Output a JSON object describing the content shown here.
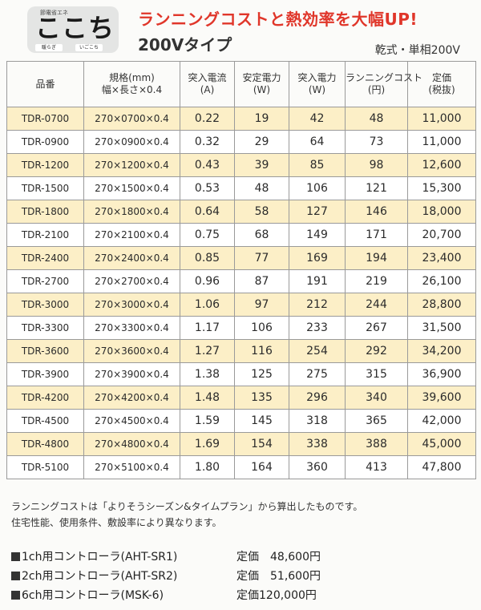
{
  "logo": {
    "top": "節電省エネ",
    "main": "ここち",
    "sub": "暖",
    "left_label": "暖らぎ",
    "right_label": "いごこち"
  },
  "headline": "ランニングコストと熱効率を大幅UP!",
  "subhead": "200Vタイプ",
  "spec": "乾式・単相200V",
  "table": {
    "headers": [
      [
        "品番"
      ],
      [
        "規格(mm)",
        "幅×長さ×0.4"
      ],
      [
        "突入電流",
        "(A)"
      ],
      [
        "安定電力",
        "(W)"
      ],
      [
        "突入電力",
        "(W)"
      ],
      [
        "ランニングコスト",
        "(円)"
      ],
      [
        "定価",
        "(税抜)"
      ]
    ],
    "rows": [
      [
        "TDR-0700",
        "270×0700×0.4",
        "0.22",
        "19",
        "42",
        "48",
        "11,000"
      ],
      [
        "TDR-0900",
        "270×0900×0.4",
        "0.32",
        "29",
        "64",
        "73",
        "11,000"
      ],
      [
        "TDR-1200",
        "270×1200×0.4",
        "0.43",
        "39",
        "85",
        "98",
        "12,600"
      ],
      [
        "TDR-1500",
        "270×1500×0.4",
        "0.53",
        "48",
        "106",
        "121",
        "15,300"
      ],
      [
        "TDR-1800",
        "270×1800×0.4",
        "0.64",
        "58",
        "127",
        "146",
        "18,000"
      ],
      [
        "TDR-2100",
        "270×2100×0.4",
        "0.75",
        "68",
        "149",
        "171",
        "20,700"
      ],
      [
        "TDR-2400",
        "270×2400×0.4",
        "0.85",
        "77",
        "169",
        "194",
        "23,400"
      ],
      [
        "TDR-2700",
        "270×2700×0.4",
        "0.96",
        "87",
        "191",
        "219",
        "26,100"
      ],
      [
        "TDR-3000",
        "270×3000×0.4",
        "1.06",
        "97",
        "212",
        "244",
        "28,800"
      ],
      [
        "TDR-3300",
        "270×3300×0.4",
        "1.17",
        "106",
        "233",
        "267",
        "31,500"
      ],
      [
        "TDR-3600",
        "270×3600×0.4",
        "1.27",
        "116",
        "254",
        "292",
        "34,200"
      ],
      [
        "TDR-3900",
        "270×3900×0.4",
        "1.38",
        "125",
        "275",
        "315",
        "36,900"
      ],
      [
        "TDR-4200",
        "270×4200×0.4",
        "1.48",
        "135",
        "296",
        "340",
        "39,600"
      ],
      [
        "TDR-4500",
        "270×4500×0.4",
        "1.59",
        "145",
        "318",
        "365",
        "42,000"
      ],
      [
        "TDR-4800",
        "270×4800×0.4",
        "1.69",
        "154",
        "338",
        "388",
        "45,000"
      ],
      [
        "TDR-5100",
        "270×5100×0.4",
        "1.80",
        "164",
        "360",
        "413",
        "47,800"
      ]
    ]
  },
  "notes": [
    "ランニングコストは「よりそうシーズン&タイムプラン」から算出したものです。",
    "住宅性能、使用条件、敷設率により異なります。"
  ],
  "controllers": [
    {
      "name": "1ch用コントローラ(AHT-SR1)",
      "price": "定価　48,600円"
    },
    {
      "name": "2ch用コントローラ(AHT-SR2)",
      "price": "定価　51,600円"
    },
    {
      "name": "6ch用コントローラ(MSK-6)",
      "price": "定価120,000円"
    }
  ]
}
